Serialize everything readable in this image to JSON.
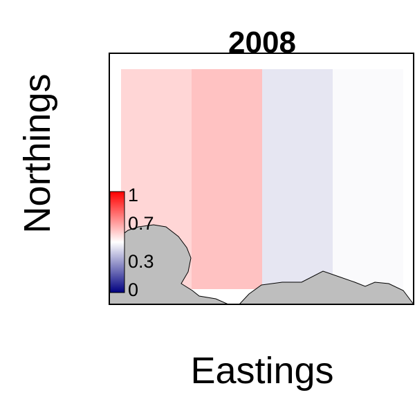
{
  "chart_data": {
    "type": "heatmap",
    "title": "2008",
    "xlabel": "Eastings",
    "ylabel": "Northings",
    "columns": [
      {
        "value": 0.58
      },
      {
        "value": 0.62
      },
      {
        "value": 0.45
      },
      {
        "value": 0.49
      }
    ],
    "legend": {
      "position": "bottom-left",
      "ticks": [
        "1",
        "0.7",
        "0.3",
        "0"
      ],
      "tick_values": [
        1,
        0.7,
        0.3,
        0
      ],
      "range": [
        0,
        1
      ],
      "colors": [
        "#000080",
        "#ffffff",
        "#ff0000"
      ]
    },
    "land_color": "#bebebe",
    "grid": false
  }
}
